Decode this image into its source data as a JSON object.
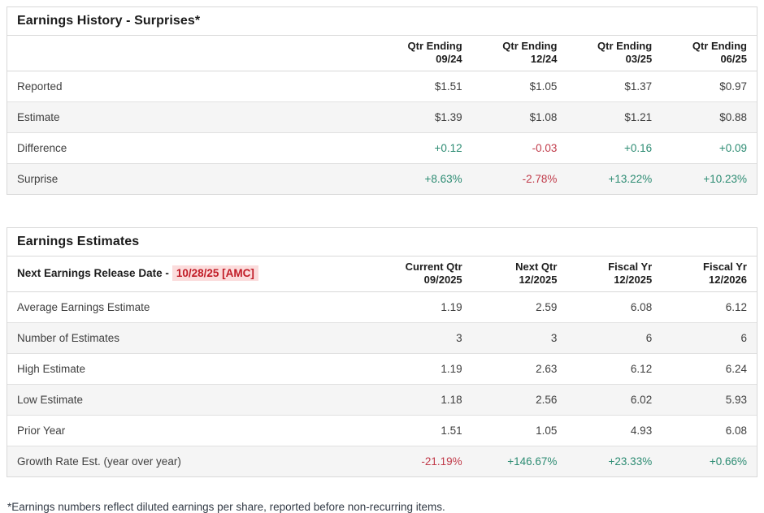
{
  "colors": {
    "positive": "#2d8c73",
    "negative": "#c13b4a",
    "highlight_bg": "#fbdcdc",
    "highlight_text": "#c11b26"
  },
  "history": {
    "title": "Earnings History - Surprises*",
    "columns": [
      {
        "line1": "Qtr Ending",
        "line2": "09/24"
      },
      {
        "line1": "Qtr Ending",
        "line2": "12/24"
      },
      {
        "line1": "Qtr Ending",
        "line2": "03/25"
      },
      {
        "line1": "Qtr Ending",
        "line2": "06/25"
      }
    ],
    "rows": [
      {
        "label": "Reported",
        "values": [
          "$1.51",
          "$1.05",
          "$1.37",
          "$0.97"
        ]
      },
      {
        "label": "Estimate",
        "values": [
          "$1.39",
          "$1.08",
          "$1.21",
          "$0.88"
        ]
      },
      {
        "label": "Difference",
        "values": [
          "+0.12",
          "-0.03",
          "+0.16",
          "+0.09"
        ]
      },
      {
        "label": "Surprise",
        "values": [
          "+8.63%",
          "-2.78%",
          "+13.22%",
          "+10.23%"
        ]
      }
    ]
  },
  "estimates": {
    "title": "Earnings Estimates",
    "release_label": "Next Earnings Release Date -",
    "release_date": "10/28/25 [AMC]",
    "columns": [
      {
        "line1": "Current Qtr",
        "line2": "09/2025"
      },
      {
        "line1": "Next Qtr",
        "line2": "12/2025"
      },
      {
        "line1": "Fiscal Yr",
        "line2": "12/2025"
      },
      {
        "line1": "Fiscal Yr",
        "line2": "12/2026"
      }
    ],
    "rows": [
      {
        "label": "Average Earnings Estimate",
        "values": [
          "1.19",
          "2.59",
          "6.08",
          "6.12"
        ]
      },
      {
        "label": "Number of Estimates",
        "values": [
          "3",
          "3",
          "6",
          "6"
        ]
      },
      {
        "label": "High Estimate",
        "values": [
          "1.19",
          "2.63",
          "6.12",
          "6.24"
        ]
      },
      {
        "label": "Low Estimate",
        "values": [
          "1.18",
          "2.56",
          "6.02",
          "5.93"
        ]
      },
      {
        "label": "Prior Year",
        "values": [
          "1.51",
          "1.05",
          "4.93",
          "6.08"
        ]
      },
      {
        "label": "Growth Rate Est. (year over year)",
        "values": [
          "-21.19%",
          "+146.67%",
          "+23.33%",
          "+0.66%"
        ]
      }
    ]
  },
  "footnote": "*Earnings numbers reflect diluted earnings per share, reported before non-recurring items."
}
